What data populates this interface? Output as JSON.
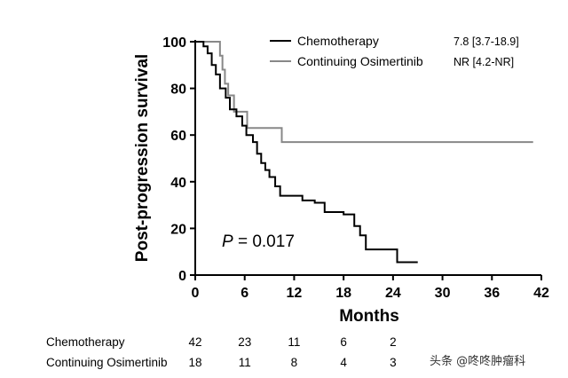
{
  "chart_data": {
    "type": "line",
    "subtype": "kaplan-meier",
    "xlabel": "Months",
    "ylabel": "Post-progression survival",
    "xlim": [
      0,
      42
    ],
    "ylim": [
      0,
      100
    ],
    "x_ticks": [
      0,
      6,
      12,
      18,
      24,
      30,
      36,
      42
    ],
    "y_ticks": [
      0,
      20,
      40,
      60,
      80,
      100
    ],
    "grid": false,
    "legend_position": "top-right",
    "annotation": {
      "prefix": "P",
      "text": " = 0.017"
    },
    "series": [
      {
        "name": "Chemotherapy",
        "ci": "7.8 [3.7-18.9]",
        "color": "#000000",
        "steps": [
          [
            0,
            100
          ],
          [
            1,
            98
          ],
          [
            1.5,
            95
          ],
          [
            2,
            90
          ],
          [
            2.5,
            86
          ],
          [
            3,
            80
          ],
          [
            3.7,
            76
          ],
          [
            4.2,
            71
          ],
          [
            5,
            68
          ],
          [
            5.7,
            64
          ],
          [
            6.2,
            60
          ],
          [
            7,
            57
          ],
          [
            7.5,
            52
          ],
          [
            8,
            48
          ],
          [
            8.5,
            45
          ],
          [
            9,
            42
          ],
          [
            9.7,
            38
          ],
          [
            10.3,
            34
          ],
          [
            13,
            32
          ],
          [
            14.5,
            31
          ],
          [
            15.7,
            27
          ],
          [
            18,
            26
          ],
          [
            19.3,
            21
          ],
          [
            20,
            17
          ],
          [
            20.7,
            11
          ],
          [
            24.5,
            5.5
          ],
          [
            27,
            5.5
          ]
        ]
      },
      {
        "name": "Continuing Osimertinib",
        "ci": "NR [4.2-NR]",
        "color": "#888888",
        "steps": [
          [
            0,
            100
          ],
          [
            3,
            94
          ],
          [
            3.3,
            88
          ],
          [
            3.6,
            82
          ],
          [
            4,
            77
          ],
          [
            4.7,
            70
          ],
          [
            6.3,
            63
          ],
          [
            10.5,
            57
          ],
          [
            41,
            57
          ]
        ]
      }
    ],
    "risk_table": {
      "time_points": [
        0,
        6,
        12,
        18,
        24
      ],
      "rows": [
        {
          "label": "Chemotherapy",
          "values": [
            "42",
            "23",
            "11",
            "6",
            "2"
          ]
        },
        {
          "label": "Continuing Osimertinib",
          "values": [
            "18",
            "11",
            "8",
            "4",
            "3"
          ]
        }
      ]
    }
  },
  "watermark": "头条 @咚咚肿瘤科"
}
